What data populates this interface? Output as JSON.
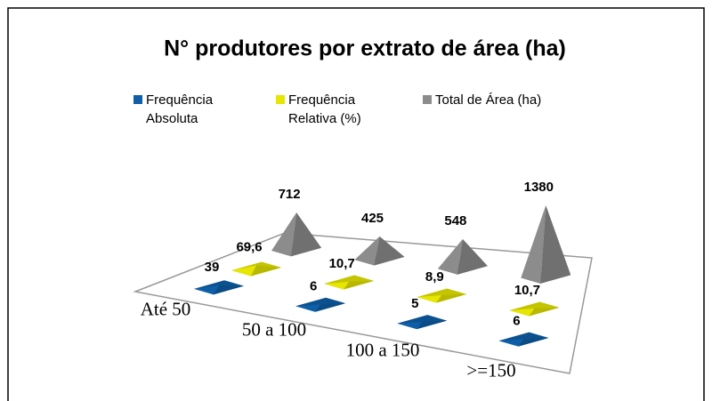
{
  "chart_data": {
    "type": "pyramid3d",
    "title": "N° produtores por extrato de área (ha)",
    "categories": [
      "Até 50",
      "50 a 100",
      "100 a 150",
      ">=150"
    ],
    "series": [
      {
        "name": "Frequência Absoluta",
        "color": "#0e5fa8",
        "values": [
          39,
          6,
          5,
          6
        ]
      },
      {
        "name": "Frequência Relativa (%)",
        "color": "#e6e600",
        "values": [
          69.6,
          10.7,
          8.9,
          10.7
        ],
        "value_labels": [
          "69,6",
          "10,7",
          "8,9",
          "10,7"
        ]
      },
      {
        "name": "Total de Área (ha)",
        "color": "#8c8c8c",
        "values": [
          712,
          425,
          548,
          1380
        ]
      }
    ],
    "legend": "top"
  }
}
